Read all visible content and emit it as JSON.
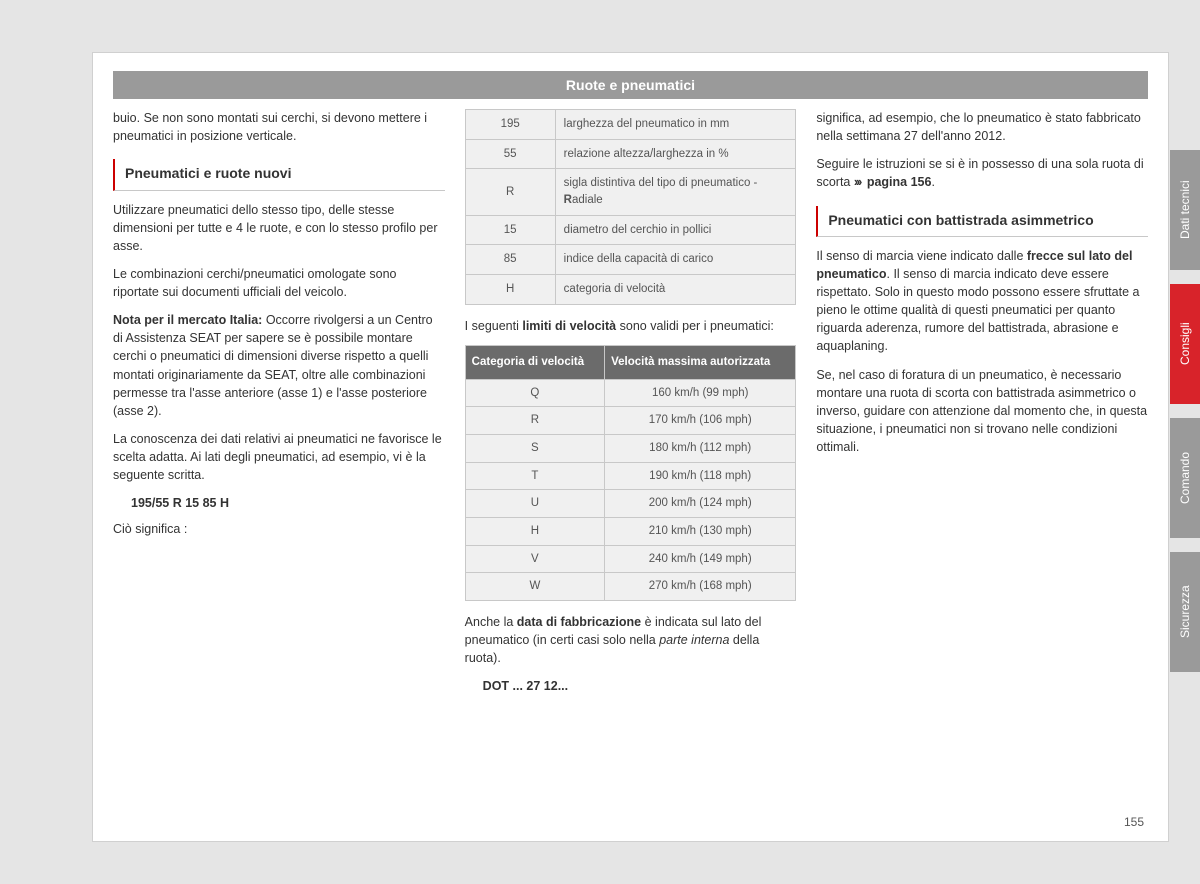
{
  "header": {
    "title": "Ruote e pneumatici"
  },
  "col1": {
    "intro": "buio. Se non sono montati sui cerchi, si devono mettere i pneumatici in posizione verticale.",
    "heading1": "Pneumatici e ruote nuovi",
    "p1": "Utilizzare pneumatici dello stesso tipo, delle stesse dimensioni per tutte e 4 le ruote, e con lo stesso profilo per asse.",
    "p2": "Le combinazioni cerchi/pneumatici omologate sono riportate sui documenti ufficiali del veicolo.",
    "p3_bold": "Nota per il mercato Italia:",
    "p3_rest": " Occorre rivolgersi a un Centro di Assistenza SEAT per sapere se è possibile montare cerchi o pneumatici di dimensioni diverse rispetto a quelli montati originariamente da SEAT, oltre alle combinazioni permesse tra l'asse anteriore (asse 1) e l'asse posteriore (asse 2).",
    "p4": "La conoscenza dei dati relativi ai pneumatici ne favorisce le scelta adatta. Ai lati degli pneumatici, ad esempio, vi è la seguente scritta.",
    "tire_spec": "195/55 R 15 85 H",
    "p5": "Ciò significa :"
  },
  "col2": {
    "spec_table": {
      "rows": [
        [
          "195",
          "larghezza del pneumatico in mm"
        ],
        [
          "55",
          "relazione altezza/larghezza in %"
        ],
        [
          "R",
          "sigla distintiva del tipo di pneumatico - Radiale"
        ],
        [
          "15",
          "diametro del cerchio in pollici"
        ],
        [
          "85",
          "indice della capacità di carico"
        ],
        [
          "H",
          "categoria di velocità"
        ]
      ],
      "radiale_prefix": "sigla distintiva del tipo di pneumatico - ",
      "radiale_bold": "R",
      "radiale_suffix": "adiale"
    },
    "limits_p1": "I seguenti ",
    "limits_bold": "limiti di velocità",
    "limits_p2": " sono validi per i pneumatici:",
    "speed_table": {
      "headers": [
        "Categoria di velocità",
        "Velocità massima autorizzata"
      ],
      "rows": [
        [
          "Q",
          "160 km/h (99 mph)"
        ],
        [
          "R",
          "170 km/h (106 mph)"
        ],
        [
          "S",
          "180 km/h (112 mph)"
        ],
        [
          "T",
          "190 km/h (118 mph)"
        ],
        [
          "U",
          "200 km/h (124 mph)"
        ],
        [
          "H",
          "210 km/h (130 mph)"
        ],
        [
          "V",
          "240 km/h (149 mph)"
        ],
        [
          "W",
          "270 km/h (168 mph)"
        ]
      ]
    },
    "date_p1": "Anche la ",
    "date_bold": "data di fabbricazione",
    "date_p2": " è indicata sul lato del pneumatico (in certi casi solo nella ",
    "date_italic": "parte interna",
    "date_p3": " della ruota).",
    "dot": "DOT ... 27 12..."
  },
  "col3": {
    "p1": "significa, ad esempio, che lo pneumatico è stato fabbricato nella settimana 27 dell'anno 2012.",
    "p2a": "Seguire le istruzioni se si è in possesso di una sola ruota di scorta ",
    "p2_arrows": "›››",
    "p2_ref": " pagina 156",
    "p2b": ".",
    "heading": "Pneumatici con battistrada asimmetrico",
    "p3a": "Il senso di marcia viene indicato dalle ",
    "p3_bold": "frecce sul lato del pneumatico",
    "p3b": ". Il senso di marcia indicato deve essere rispettato. Solo in questo modo possono essere sfruttate a pieno le ottime qualità di questi pneumatici per quanto riguarda aderenza, rumore del battistrada, abrasione e aquaplaning.",
    "p4": "Se, nel caso di foratura di un pneumatico, è necessario montare una ruota di scorta con battistrada asimmetrico o inverso, guidare con attenzione dal momento che, in questa situazione, i pneumatici non si trovano nelle condizioni ottimali."
  },
  "tabs": {
    "t1": "Dati tecnici",
    "t2": "Consigli",
    "t3": "Comando",
    "t4": "Sicurezza"
  },
  "page_number": "155"
}
